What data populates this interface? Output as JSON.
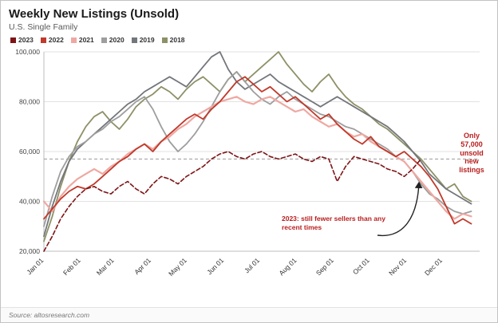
{
  "header": {
    "title": "Weekly New Listings (Unsold)",
    "subtitle": "U.S. Single Family"
  },
  "source": "Source: altosresearch.com",
  "annotations": {
    "right_note_lines": [
      "Only",
      "57,000",
      "unsold",
      "new",
      "listings"
    ],
    "note_2023_lines": [
      "2023: still fewer sellers than any",
      "recent times"
    ]
  },
  "chart_data": {
    "type": "line",
    "title": "Weekly New Listings (Unsold)",
    "xlabel": "",
    "ylabel": "",
    "ylim": [
      20000,
      100000
    ],
    "yticks": [
      20000,
      40000,
      60000,
      80000,
      100000
    ],
    "x_tick_labels": [
      "Jan 01",
      "Feb 01",
      "Mar 01",
      "Apr 01",
      "May 01",
      "Jun 01",
      "Jul 01",
      "Aug 01",
      "Sep 01",
      "Oct 01",
      "Nov 01",
      "Dec 01"
    ],
    "grid": "horizontal",
    "legend_position": "top-left",
    "reference_line": {
      "value": 57000,
      "style": "dashed",
      "color": "#9a9a9a"
    },
    "x_unit": "week-of-year",
    "weeks_per_year": 52,
    "series": [
      {
        "name": "2023",
        "color": "#7e1416",
        "dash": true,
        "values": [
          20000,
          26000,
          33000,
          38000,
          42000,
          45000,
          46000,
          44000,
          43000,
          46000,
          48000,
          45000,
          43000,
          47000,
          50000,
          49000,
          47000,
          50000,
          52000,
          54000,
          57000,
          59000,
          60000,
          58000,
          57000,
          59000,
          60000,
          58000,
          57000,
          58000,
          59000,
          57000,
          56000,
          58000,
          57000,
          48000,
          54000,
          58000,
          57000,
          56000,
          55000,
          53000,
          52000,
          50000,
          53000,
          57000
        ]
      },
      {
        "name": "2022",
        "color": "#c0392b",
        "dash": false,
        "values": [
          33000,
          37000,
          41000,
          44000,
          46000,
          45000,
          47000,
          50000,
          53000,
          56000,
          58000,
          61000,
          63000,
          60000,
          64000,
          67000,
          70000,
          73000,
          75000,
          73000,
          77000,
          80000,
          84000,
          88000,
          90000,
          87000,
          84000,
          86000,
          83000,
          80000,
          82000,
          79000,
          76000,
          73000,
          75000,
          71000,
          68000,
          65000,
          63000,
          66000,
          62000,
          60000,
          58000,
          60000,
          57000,
          54000,
          50000,
          45000,
          38000,
          31000,
          33000,
          31000
        ]
      },
      {
        "name": "2021",
        "color": "#efa8a1",
        "dash": false,
        "values": [
          40000,
          36000,
          42000,
          46000,
          49000,
          51000,
          53000,
          51000,
          54000,
          56000,
          59000,
          61000,
          63000,
          61000,
          64000,
          66000,
          69000,
          71000,
          74000,
          76000,
          78000,
          80000,
          81000,
          82000,
          80000,
          79000,
          81000,
          82000,
          80000,
          78000,
          76000,
          77000,
          74000,
          72000,
          70000,
          71000,
          68000,
          66000,
          67000,
          64000,
          62000,
          60000,
          58000,
          56000,
          52000,
          48000,
          44000,
          40000,
          36000,
          33000,
          35000,
          34000
        ]
      },
      {
        "name": "2020",
        "color": "#9e9e9e",
        "dash": false,
        "values": [
          30000,
          42000,
          52000,
          58000,
          62000,
          64000,
          67000,
          69000,
          72000,
          74000,
          77000,
          80000,
          82000,
          77000,
          70000,
          64000,
          60000,
          63000,
          67000,
          72000,
          78000,
          84000,
          89000,
          92000,
          88000,
          84000,
          81000,
          79000,
          82000,
          84000,
          81000,
          79000,
          77000,
          75000,
          74000,
          72000,
          70000,
          69000,
          67000,
          65000,
          63000,
          61000,
          58000,
          56000,
          52000,
          47000,
          43000,
          41000,
          38000,
          36000,
          35000,
          36000
        ]
      },
      {
        "name": "2019",
        "color": "#73767a",
        "dash": false,
        "values": [
          26000,
          38000,
          48000,
          56000,
          61000,
          64000,
          67000,
          70000,
          73000,
          76000,
          79000,
          81000,
          84000,
          86000,
          88000,
          90000,
          88000,
          86000,
          90000,
          94000,
          98000,
          100000,
          93000,
          88000,
          85000,
          87000,
          89000,
          91000,
          88000,
          86000,
          84000,
          82000,
          80000,
          78000,
          80000,
          82000,
          80000,
          78000,
          76000,
          74000,
          72000,
          70000,
          67000,
          64000,
          60000,
          56000,
          51000,
          48000,
          45000,
          43000,
          41000,
          39000
        ]
      },
      {
        "name": "2018",
        "color": "#8e9067",
        "dash": false,
        "values": [
          24000,
          34000,
          46000,
          56000,
          64000,
          70000,
          74000,
          76000,
          72000,
          69000,
          73000,
          78000,
          81000,
          83000,
          86000,
          84000,
          81000,
          85000,
          88000,
          90000,
          87000,
          84000,
          89000,
          92000,
          88000,
          91000,
          94000,
          97000,
          100000,
          95000,
          91000,
          87000,
          84000,
          88000,
          91000,
          86000,
          82000,
          79000,
          77000,
          74000,
          71000,
          69000,
          66000,
          63000,
          60000,
          57000,
          53000,
          49000,
          45000,
          47000,
          42000,
          40000
        ]
      }
    ]
  }
}
